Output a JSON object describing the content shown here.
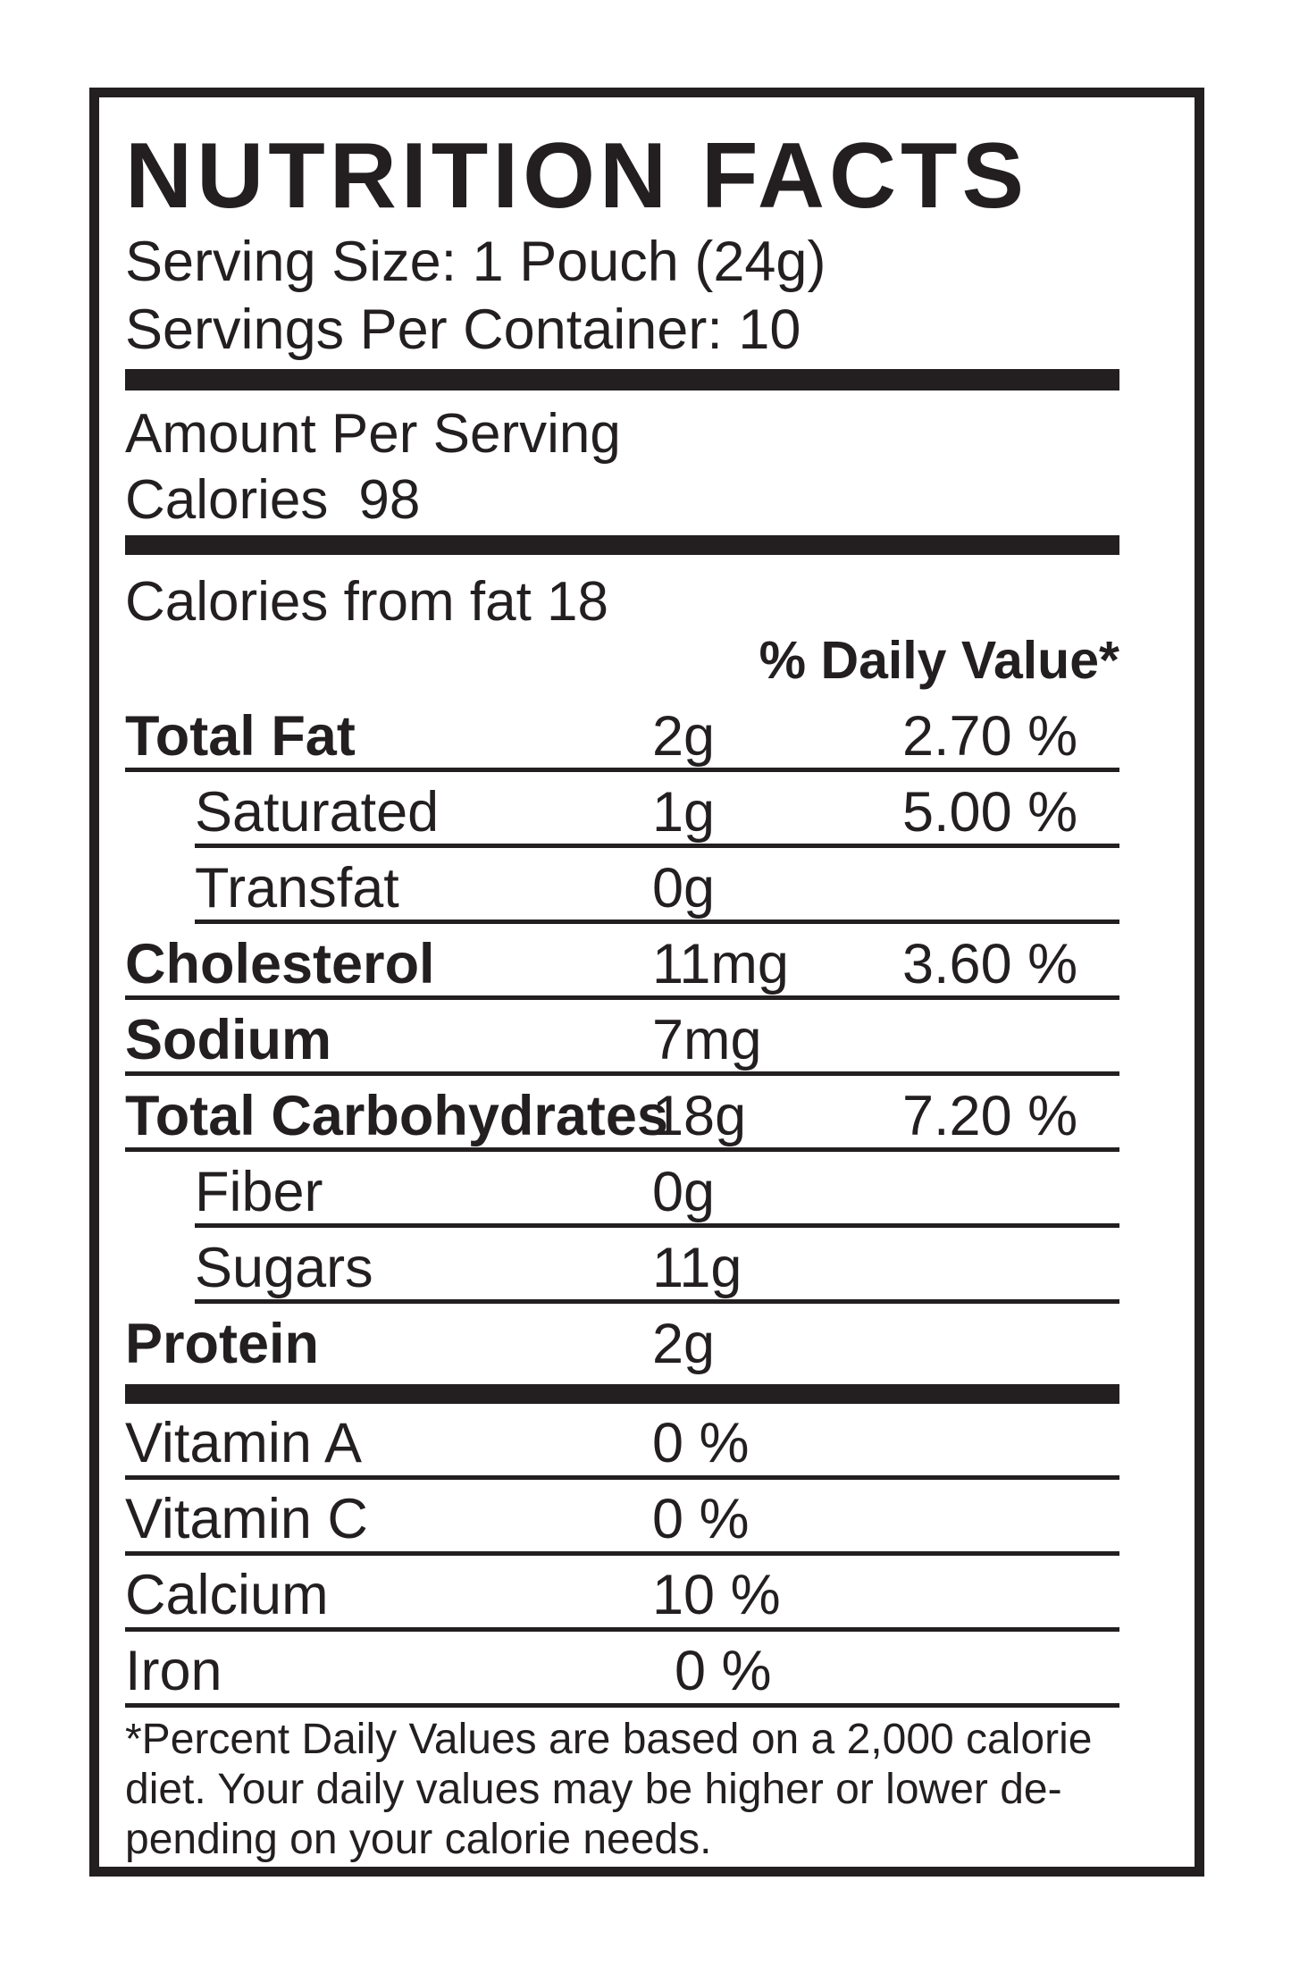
{
  "label": {
    "title": "NUTRITION FACTS",
    "serving_size": "Serving Size: 1 Pouch (24g)",
    "servings_per_container": "Servings Per Container: 10",
    "amount_per_serving": "Amount Per Serving",
    "calories_label": "Calories",
    "calories_value": "98",
    "calories_from_fat": "Calories from fat 18",
    "daily_value_header": "% Daily Value*",
    "nutrients": [
      {
        "name": "Total Fat",
        "amount": "2g",
        "dv": "2.70 %"
      },
      {
        "name": "Saturated",
        "amount": "1g",
        "dv": "5.00 %"
      },
      {
        "name": "Transfat",
        "amount": "0g",
        "dv": ""
      },
      {
        "name": "Cholesterol",
        "amount": "11mg",
        "dv": "3.60 %"
      },
      {
        "name": "Sodium",
        "amount": "7mg",
        "dv": ""
      },
      {
        "name": "Total Carbohydrates",
        "amount": "18g",
        "dv": "7.20 %"
      },
      {
        "name": "Fiber",
        "amount": "0g",
        "dv": ""
      },
      {
        "name": "Sugars",
        "amount": "11g",
        "dv": ""
      },
      {
        "name": "Protein",
        "amount": "2g",
        "dv": ""
      }
    ],
    "vitamins": [
      {
        "name": "Vitamin A",
        "value": "0 %"
      },
      {
        "name": "Vitamin C",
        "value": "0 %"
      },
      {
        "name": "Calcium",
        "value": "10 %"
      },
      {
        "name": "Iron",
        "value": "0 %"
      }
    ],
    "footnote_lines": [
      "*Percent Daily Values are based on a 2,000 calorie",
      "diet. Your daily values may be higher or lower de-",
      "pending on your calorie needs."
    ],
    "colors": {
      "ink": "#231f20",
      "background": "#ffffff"
    }
  }
}
